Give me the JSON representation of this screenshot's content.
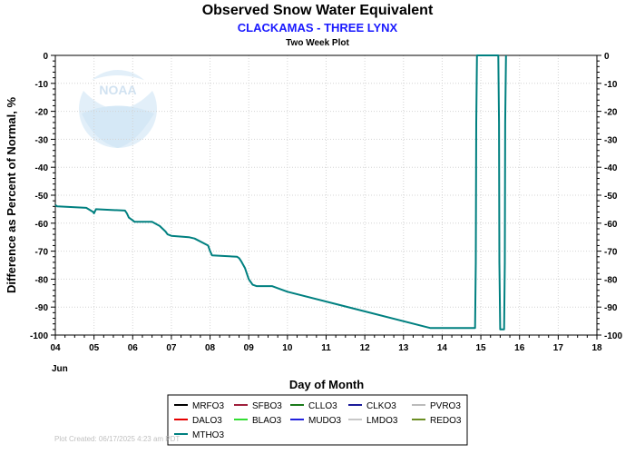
{
  "chart_data": {
    "type": "line",
    "title": "Observed Snow Water Equivalent",
    "subtitle": "CLACKAMAS - THREE LYNX",
    "subsubtitle": "Two Week Plot",
    "xlabel": "Day of Month",
    "ylabel": "Difference as Percent of Normal, %",
    "month_label": "Jun",
    "xlim": [
      4,
      18
    ],
    "ylim": [
      -100,
      0
    ],
    "x_ticks": [
      "04",
      "05",
      "06",
      "07",
      "08",
      "09",
      "10",
      "11",
      "12",
      "13",
      "14",
      "15",
      "16",
      "17",
      "18"
    ],
    "y_ticks": [
      "0",
      "-10",
      "-20",
      "-30",
      "-40",
      "-50",
      "-60",
      "-70",
      "-80",
      "-90",
      "-100"
    ],
    "grid": true,
    "legend_position": "bottom",
    "series": [
      {
        "name": "MRFO3",
        "color": "#000000",
        "x": [],
        "y": []
      },
      {
        "name": "SFBO3",
        "color": "#a0203c",
        "x": [],
        "y": []
      },
      {
        "name": "CLLO3",
        "color": "#1a7a1a",
        "x": [],
        "y": []
      },
      {
        "name": "CLKO3",
        "color": "#1a1a99",
        "x": [],
        "y": []
      },
      {
        "name": "PVRO3",
        "color": "#bbbbbb",
        "x": [],
        "y": []
      },
      {
        "name": "DALO3",
        "color": "#e60000",
        "x": [],
        "y": []
      },
      {
        "name": "BLAO3",
        "color": "#33dd33",
        "x": [],
        "y": []
      },
      {
        "name": "MUDO3",
        "color": "#2222dd",
        "x": [],
        "y": []
      },
      {
        "name": "LMDO3",
        "color": "#c8c8c8",
        "x": [],
        "y": []
      },
      {
        "name": "REDO3",
        "color": "#6b8e23",
        "x": [],
        "y": []
      },
      {
        "name": "MTHO3",
        "color": "#008080",
        "x": [
          4.0,
          4.05,
          4.8,
          4.98,
          5.0,
          5.05,
          5.8,
          5.85,
          5.9,
          6.0,
          6.05,
          6.5,
          6.7,
          6.85,
          6.9,
          7.0,
          7.45,
          7.6,
          7.95,
          8.0,
          8.05,
          8.7,
          8.75,
          8.8,
          8.9,
          9.0,
          9.1,
          9.2,
          9.6,
          9.8,
          10.0,
          13.7,
          14.85,
          14.87,
          14.88,
          14.9,
          15.45,
          15.47,
          15.48,
          15.5,
          15.6,
          15.62,
          15.63,
          15.65
        ],
        "y": [
          -53.5,
          -54,
          -54.5,
          -56,
          -56.5,
          -55,
          -55.5,
          -56.5,
          -58,
          -59,
          -59.5,
          -59.5,
          -61,
          -63,
          -64,
          -64.5,
          -65,
          -65.5,
          -68,
          -70,
          -71.5,
          -72,
          -72.5,
          -73.5,
          -76,
          -80,
          -82,
          -82.5,
          -82.5,
          -83.5,
          -84.5,
          -97.5,
          -97.5,
          -74,
          -24,
          0,
          0,
          -24,
          -74,
          -98,
          -98,
          -74,
          -24,
          0
        ]
      }
    ],
    "footer": "Plot Created:  06/17/2025 4:23 am PDT",
    "watermark": "NOAA"
  }
}
